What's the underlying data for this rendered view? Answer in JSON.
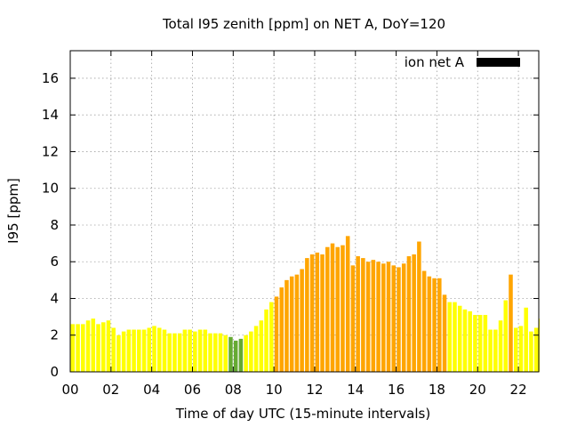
{
  "chart_data": {
    "type": "bar",
    "title": "Total I95 zenith [ppm] on NET A, DoY=120",
    "xlabel": "Time of day UTC (15-minute intervals)",
    "ylabel": "I95 [ppm]",
    "xlim": [
      0,
      23
    ],
    "ylim": [
      0,
      17.5
    ],
    "x_ticks": [
      {
        "value": 0,
        "label": "00"
      },
      {
        "value": 2,
        "label": "02"
      },
      {
        "value": 4,
        "label": "04"
      },
      {
        "value": 6,
        "label": "06"
      },
      {
        "value": 8,
        "label": "08"
      },
      {
        "value": 10,
        "label": "10"
      },
      {
        "value": 12,
        "label": "12"
      },
      {
        "value": 14,
        "label": "14"
      },
      {
        "value": 16,
        "label": "16"
      },
      {
        "value": 18,
        "label": "18"
      },
      {
        "value": 20,
        "label": "20"
      },
      {
        "value": 22,
        "label": "22"
      }
    ],
    "y_ticks": [
      {
        "value": 0,
        "label": "0"
      },
      {
        "value": 2,
        "label": "2"
      },
      {
        "value": 4,
        "label": "4"
      },
      {
        "value": 6,
        "label": "6"
      },
      {
        "value": 8,
        "label": "8"
      },
      {
        "value": 10,
        "label": "10"
      },
      {
        "value": 12,
        "label": "12"
      },
      {
        "value": 14,
        "label": "14"
      },
      {
        "value": 16,
        "label": "16"
      }
    ],
    "grid": true,
    "legend": {
      "position": "top-right",
      "entries": [
        {
          "name": "ion net A",
          "color": "#000000"
        }
      ]
    },
    "bar_interval_hours": 0.25,
    "color_scale": {
      "low": "#66aa33",
      "normal": "#ffff00",
      "high": "#ffa500"
    },
    "series": [
      {
        "name": "ion net A",
        "values": [
          2.6,
          2.6,
          2.6,
          2.8,
          2.9,
          2.6,
          2.7,
          2.8,
          2.4,
          2.0,
          2.2,
          2.3,
          2.3,
          2.3,
          2.3,
          2.4,
          2.5,
          2.4,
          2.3,
          2.1,
          2.1,
          2.1,
          2.3,
          2.3,
          2.2,
          2.3,
          2.3,
          2.1,
          2.1,
          2.1,
          2.0,
          1.9,
          1.7,
          1.8,
          2.0,
          2.2,
          2.5,
          2.8,
          3.4,
          3.8,
          4.1,
          4.6,
          5.0,
          5.2,
          5.3,
          5.6,
          6.2,
          6.4,
          6.5,
          6.4,
          6.8,
          7.0,
          6.8,
          6.9,
          7.4,
          5.8,
          6.3,
          6.2,
          6.0,
          6.1,
          6.0,
          5.9,
          6.0,
          5.8,
          5.7,
          5.9,
          6.3,
          6.4,
          7.1,
          5.5,
          5.2,
          5.1,
          5.1,
          4.2,
          3.8,
          3.8,
          3.6,
          3.4,
          3.3,
          3.1,
          3.1,
          3.1,
          2.3,
          2.3,
          2.8,
          3.9,
          5.3,
          2.4,
          2.5,
          3.5,
          2.2,
          2.4,
          2.9
        ]
      }
    ]
  }
}
